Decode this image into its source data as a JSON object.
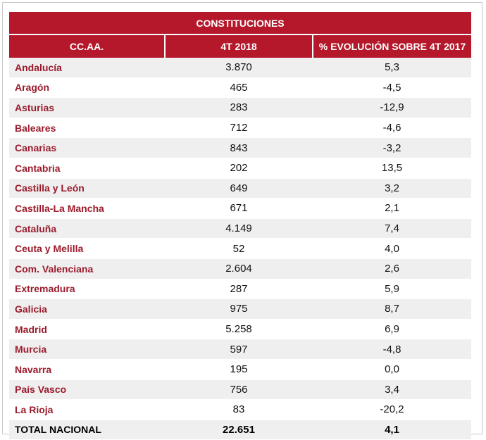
{
  "table": {
    "title": "CONSTITUCIONES",
    "headers": [
      "CC.AA.",
      "4T 2018",
      "% EVOLUCIÓN SOBRE 4T 2017"
    ],
    "rows": [
      [
        "Andalucía",
        "3.870",
        "5,3"
      ],
      [
        "Aragón",
        "465",
        "-4,5"
      ],
      [
        "Asturias",
        "283",
        "-12,9"
      ],
      [
        "Baleares",
        "712",
        "-4,6"
      ],
      [
        "Canarias",
        "843",
        "-3,2"
      ],
      [
        "Cantabria",
        "202",
        "13,5"
      ],
      [
        "Castilla y León",
        "649",
        "3,2"
      ],
      [
        "Castilla-La Mancha",
        "671",
        "2,1"
      ],
      [
        "Cataluña",
        "4.149",
        "7,4"
      ],
      [
        "Ceuta y Melilla",
        "52",
        "4,0"
      ],
      [
        "Com. Valenciana",
        "2.604",
        "2,6"
      ],
      [
        "Extremadura",
        "287",
        "5,9"
      ],
      [
        "Galicia",
        "975",
        "8,7"
      ],
      [
        "Madrid",
        "5.258",
        "6,9"
      ],
      [
        "Murcia",
        "597",
        "-4,8"
      ],
      [
        "Navarra",
        "195",
        "0,0"
      ],
      [
        "País Vasco",
        "756",
        "3,4"
      ],
      [
        "La Rioja",
        "83",
        "-20,2"
      ]
    ],
    "total": [
      "TOTAL NACIONAL",
      "22.651",
      "4,1"
    ]
  }
}
